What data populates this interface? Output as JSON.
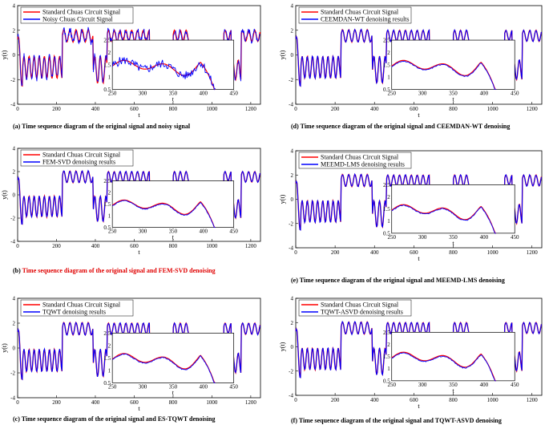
{
  "colors": {
    "standard": "#ff0000",
    "noisy": "#0000ff",
    "axis": "#000000"
  },
  "chart_data": [
    {
      "id": "a",
      "type": "line",
      "caption": "(a)  Time sequence diagram of the original signal and noisy signal",
      "legend": [
        "Standard Chuas Circuit Signal",
        "Noisy Chuas Circuit Signal"
      ],
      "xlabel": "t",
      "ylabel": "y(t)",
      "xlim": [
        0,
        1250
      ],
      "ylim": [
        -4,
        4
      ],
      "xticks": [
        0,
        200,
        400,
        600,
        800,
        1000,
        1200
      ],
      "yticks": [
        -4,
        -2,
        0,
        2,
        4
      ],
      "inset": {
        "xlim": [
          250,
          450
        ],
        "ylim": [
          0.5,
          2.5
        ],
        "xticks": [
          250,
          300,
          350,
          400,
          450
        ],
        "yticks": [
          0.5,
          1,
          1.5,
          2,
          2.5
        ]
      }
    },
    {
      "id": "b",
      "type": "line",
      "caption_label": "(b)",
      "caption": "Time sequence diagram of the original signal and FEM-SVD denoising",
      "legend": [
        "Standard Chuas Circuit Signal",
        "FEM-SVD denoising results"
      ],
      "xlabel": "t",
      "ylabel": "y(t)",
      "xlim": [
        0,
        1250
      ],
      "ylim": [
        -4,
        4
      ],
      "xticks": [
        0,
        200,
        400,
        600,
        800,
        1000,
        1200
      ],
      "yticks": [
        -4,
        -2,
        0,
        2,
        4
      ],
      "inset": {
        "xlim": [
          250,
          450
        ],
        "ylim": [
          0.5,
          2.5
        ],
        "xticks": [
          250,
          300,
          350,
          400,
          450
        ],
        "yticks": [
          0.5,
          1,
          1.5,
          2,
          2.5
        ]
      }
    },
    {
      "id": "c",
      "type": "line",
      "caption": "(c)  Time sequence diagram of the original signal and ES-TQWT denoising",
      "legend": [
        "Standard Chuas Circuit Signal",
        "TQWT denoising results"
      ],
      "xlabel": "t",
      "ylabel": "y(t)",
      "xlim": [
        0,
        1250
      ],
      "ylim": [
        -4,
        4
      ],
      "xticks": [
        0,
        200,
        400,
        600,
        800,
        1000,
        1200
      ],
      "yticks": [
        -4,
        -2,
        0,
        2,
        4
      ],
      "inset": {
        "xlim": [
          250,
          450
        ],
        "ylim": [
          0.5,
          2.5
        ],
        "xticks": [
          250,
          300,
          350,
          400,
          450
        ],
        "yticks": [
          0.5,
          1,
          1.5,
          2,
          2.5
        ]
      }
    },
    {
      "id": "d",
      "type": "line",
      "caption": "(d)  Time sequence diagram of the original signal and CEEMDAN-WT denoising",
      "legend": [
        "Standard Chuas Circuit Signal",
        "CEEMDAN-WT denoising results"
      ],
      "xlabel": "t",
      "ylabel": "y(t)",
      "xlim": [
        0,
        1250
      ],
      "ylim": [
        -4,
        4
      ],
      "xticks": [
        0,
        200,
        400,
        600,
        800,
        1000,
        1200
      ],
      "yticks": [
        -4,
        -2,
        0,
        2,
        4
      ],
      "inset": {
        "xlim": [
          250,
          450
        ],
        "ylim": [
          0.5,
          2.5
        ],
        "xticks": [
          250,
          300,
          350,
          400,
          450
        ],
        "yticks": [
          0.5,
          1,
          1.5,
          2,
          2.5
        ]
      }
    },
    {
      "id": "e",
      "type": "line",
      "caption": "(e)  Time sequence diagram of the original signal and MEEMD-LMS denoising",
      "legend": [
        "Standard Chuas Circuit Signal",
        "MEEMD-LMS denoising results"
      ],
      "xlabel": "t",
      "ylabel": "y(t)",
      "xlim": [
        0,
        1250
      ],
      "ylim": [
        -4,
        4
      ],
      "xticks": [
        0,
        200,
        400,
        600,
        800,
        1000,
        1200
      ],
      "yticks": [
        -4,
        -2,
        0,
        2,
        4
      ],
      "inset": {
        "xlim": [
          250,
          450
        ],
        "ylim": [
          0.5,
          2.5
        ],
        "xticks": [
          250,
          300,
          350,
          400,
          450
        ],
        "yticks": [
          0.5,
          1,
          1.5,
          2,
          2.5
        ]
      }
    },
    {
      "id": "f",
      "type": "line",
      "caption": "(f)  Time sequence diagram of the original signal and TQWT-ASVD denoising",
      "legend": [
        "Standard Chuas Circuit Signal",
        "TQWT-ASVD denoising results"
      ],
      "xlabel": "t",
      "ylabel": "y(t)",
      "xlim": [
        0,
        1250
      ],
      "ylim": [
        -4,
        4
      ],
      "xticks": [
        0,
        200,
        400,
        600,
        800,
        1000,
        1200
      ],
      "yticks": [
        -4,
        -2,
        0,
        2,
        4
      ],
      "inset": {
        "xlim": [
          250,
          450
        ],
        "ylim": [
          0.5,
          2.5
        ],
        "xticks": [
          250,
          300,
          350,
          400,
          450
        ],
        "yticks": [
          0.5,
          1,
          1.5,
          2,
          2.5
        ]
      }
    }
  ]
}
